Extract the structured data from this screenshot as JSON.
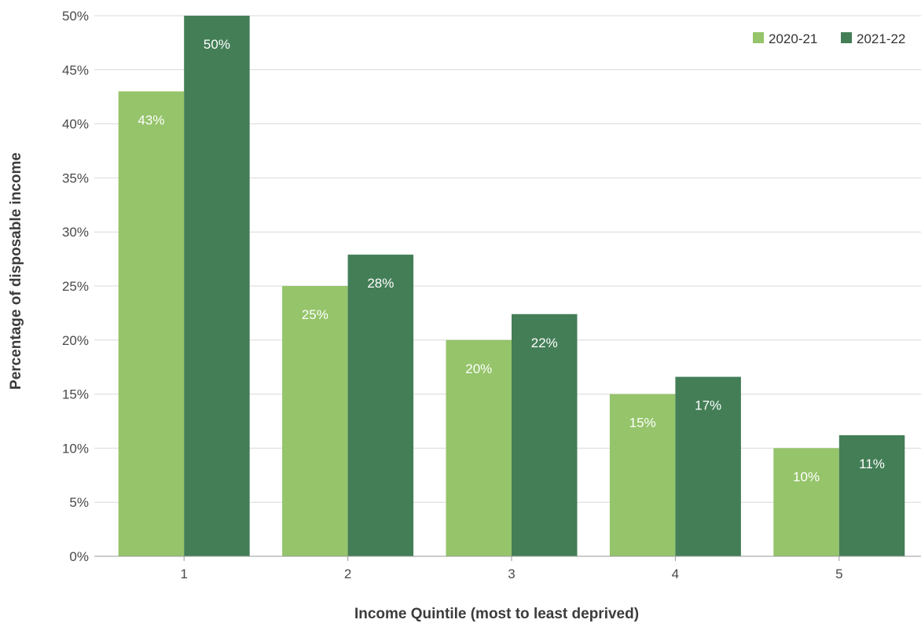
{
  "chart_data": {
    "type": "bar",
    "title": "",
    "xlabel": "Income Quintile (most to least deprived)",
    "ylabel": "Percentage of disposable income",
    "categories": [
      "1",
      "2",
      "3",
      "4",
      "5"
    ],
    "series": [
      {
        "name": "2020-21",
        "color": "#95c46a",
        "values": [
          43,
          25,
          20,
          15,
          10
        ],
        "labels": [
          "43%",
          "25%",
          "20%",
          "15%",
          "10%"
        ]
      },
      {
        "name": "2021-22",
        "color": "#437e57",
        "values": [
          50,
          27.9,
          22.4,
          16.6,
          11.2
        ],
        "labels": [
          "50%",
          "28%",
          "22%",
          "17%",
          "11%"
        ]
      }
    ],
    "ylim": [
      0,
      50
    ],
    "yticks": [
      0,
      5,
      10,
      15,
      20,
      25,
      30,
      35,
      40,
      45,
      50
    ],
    "ytick_labels": [
      "0%",
      "5%",
      "10%",
      "15%",
      "20%",
      "25%",
      "30%",
      "35%",
      "40%",
      "45%",
      "50%"
    ],
    "grid": true,
    "legend": "top-right"
  }
}
